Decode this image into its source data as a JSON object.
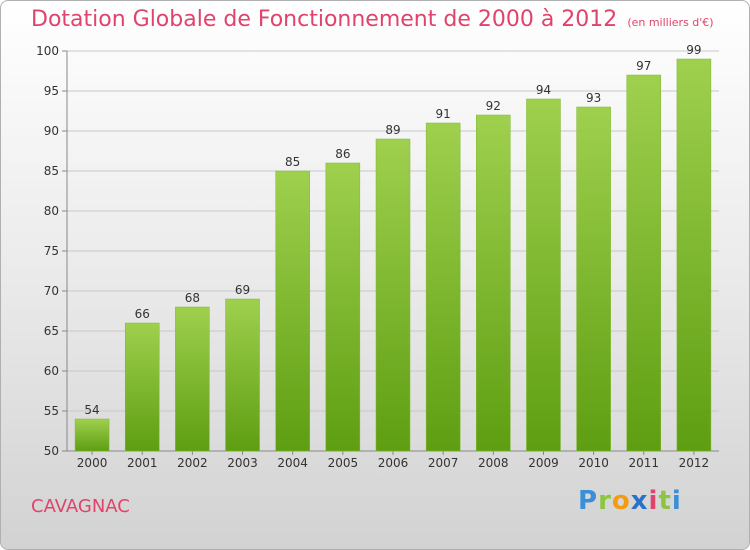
{
  "title": "Dotation Globale de Fonctionnement de 2000 à 2012",
  "unit_note": "(en milliers d'€)",
  "place_label": "CAVAGNAC",
  "logo": {
    "p": "P",
    "r": "r",
    "o": "o",
    "x": "x",
    "i": "i",
    "t": "t",
    "i2": "i"
  },
  "colors": {
    "bar_light": "#9fd04e",
    "bar_dark": "#5e9e12",
    "title": "#e0436b",
    "grid": "#c8c8c8"
  },
  "chart_data": {
    "type": "bar",
    "categories": [
      "2000",
      "2001",
      "2002",
      "2003",
      "2004",
      "2005",
      "2006",
      "2007",
      "2008",
      "2009",
      "2010",
      "2011",
      "2012"
    ],
    "values": [
      54,
      66,
      68,
      69,
      85,
      86,
      89,
      91,
      92,
      94,
      93,
      97,
      99
    ],
    "ylim": [
      50,
      100
    ],
    "yticks": [
      50,
      55,
      60,
      65,
      70,
      75,
      80,
      85,
      90,
      95,
      100
    ],
    "grid": true,
    "data_labels": true
  }
}
